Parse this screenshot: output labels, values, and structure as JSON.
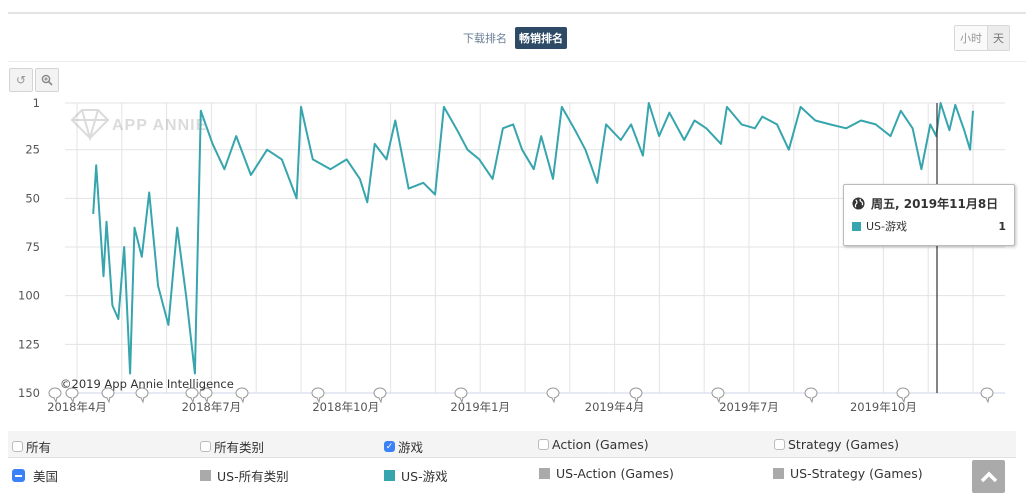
{
  "header": {
    "modes": [
      {
        "label": "下载排名",
        "active": false
      },
      {
        "label": "畅销排名",
        "active": true
      }
    ],
    "granularity": [
      {
        "label": "小时",
        "active": false
      },
      {
        "label": "天",
        "active": true
      }
    ]
  },
  "toolbar": {
    "reset_icon": "undo-icon",
    "zoom_icon": "zoom-in-icon"
  },
  "watermark": "APP ANNIE",
  "credits": "©2019 App Annie Intelligence",
  "tooltip": {
    "icon": "globe-icon",
    "title": "周五, 2019年11月8日",
    "series": "US-游戏",
    "value": "1",
    "color": "#37a5ad"
  },
  "legend": {
    "categories": [
      {
        "label": "所有",
        "checked": false
      },
      {
        "label": "所有类别",
        "checked": false
      },
      {
        "label": "游戏",
        "checked": true
      },
      {
        "label": "Action (Games)",
        "checked": false
      },
      {
        "label": "Strategy (Games)",
        "checked": false
      }
    ],
    "country": "美国",
    "series": [
      {
        "label": "US-所有类别",
        "color": "#aaaaaa"
      },
      {
        "label": "US-游戏",
        "color": "#37a5ad"
      },
      {
        "label": "US-Action (Games)",
        "color": "#aaaaaa"
      },
      {
        "label": "US-Strategy (Games)",
        "color": "#aaaaaa"
      }
    ]
  },
  "chart_data": {
    "type": "line",
    "title": "",
    "xlabel": "",
    "ylabel": "Rank",
    "y_reversed": true,
    "ylim": [
      1,
      150
    ],
    "yticks": [
      1,
      25,
      50,
      75,
      100,
      125,
      150
    ],
    "xticks": [
      "2018年4月",
      "2018年7月",
      "2018年10月",
      "2019年1月",
      "2019年4月",
      "2019年7月",
      "2019年10月"
    ],
    "grid": true,
    "legend_position": "bottom",
    "series": [
      {
        "name": "US-游戏",
        "color": "#37a5ad",
        "x_start": "2018-04-12",
        "x_end": "2019-11-30",
        "points_approx": [
          [
            "2018-04-12",
            58
          ],
          [
            "2018-04-14",
            33
          ],
          [
            "2018-04-19",
            90
          ],
          [
            "2018-04-21",
            62
          ],
          [
            "2018-04-25",
            105
          ],
          [
            "2018-04-29",
            112
          ],
          [
            "2018-05-03",
            75
          ],
          [
            "2018-05-07",
            140
          ],
          [
            "2018-05-10",
            65
          ],
          [
            "2018-05-15",
            80
          ],
          [
            "2018-05-20",
            47
          ],
          [
            "2018-05-26",
            95
          ],
          [
            "2018-06-02",
            115
          ],
          [
            "2018-06-08",
            65
          ],
          [
            "2018-06-14",
            100
          ],
          [
            "2018-06-20",
            140
          ],
          [
            "2018-06-24",
            5
          ],
          [
            "2018-07-02",
            22
          ],
          [
            "2018-07-10",
            35
          ],
          [
            "2018-07-18",
            18
          ],
          [
            "2018-07-28",
            38
          ],
          [
            "2018-08-08",
            25
          ],
          [
            "2018-08-18",
            30
          ],
          [
            "2018-08-28",
            50
          ],
          [
            "2018-08-31",
            3
          ],
          [
            "2018-09-08",
            30
          ],
          [
            "2018-09-20",
            35
          ],
          [
            "2018-10-01",
            30
          ],
          [
            "2018-10-10",
            40
          ],
          [
            "2018-10-15",
            52
          ],
          [
            "2018-10-20",
            22
          ],
          [
            "2018-10-28",
            30
          ],
          [
            "2018-11-03",
            10
          ],
          [
            "2018-11-12",
            45
          ],
          [
            "2018-11-22",
            42
          ],
          [
            "2018-11-30",
            48
          ],
          [
            "2018-12-06",
            3
          ],
          [
            "2018-12-15",
            15
          ],
          [
            "2018-12-22",
            25
          ],
          [
            "2018-12-30",
            30
          ],
          [
            "2019-01-08",
            40
          ],
          [
            "2019-01-15",
            14
          ],
          [
            "2019-01-22",
            12
          ],
          [
            "2019-01-28",
            25
          ],
          [
            "2019-02-05",
            35
          ],
          [
            "2019-02-10",
            18
          ],
          [
            "2019-02-18",
            40
          ],
          [
            "2019-02-24",
            3
          ],
          [
            "2019-03-05",
            15
          ],
          [
            "2019-03-12",
            25
          ],
          [
            "2019-03-20",
            42
          ],
          [
            "2019-03-26",
            12
          ],
          [
            "2019-04-05",
            20
          ],
          [
            "2019-04-12",
            12
          ],
          [
            "2019-04-20",
            28
          ],
          [
            "2019-04-24",
            1
          ],
          [
            "2019-05-01",
            18
          ],
          [
            "2019-05-08",
            6
          ],
          [
            "2019-05-18",
            20
          ],
          [
            "2019-05-25",
            10
          ],
          [
            "2019-06-02",
            14
          ],
          [
            "2019-06-12",
            22
          ],
          [
            "2019-06-16",
            3
          ],
          [
            "2019-06-26",
            12
          ],
          [
            "2019-07-05",
            14
          ],
          [
            "2019-07-10",
            8
          ],
          [
            "2019-07-20",
            12
          ],
          [
            "2019-07-28",
            25
          ],
          [
            "2019-08-05",
            3
          ],
          [
            "2019-08-15",
            10
          ],
          [
            "2019-08-25",
            12
          ],
          [
            "2019-09-05",
            14
          ],
          [
            "2019-09-15",
            10
          ],
          [
            "2019-09-25",
            12
          ],
          [
            "2019-10-05",
            18
          ],
          [
            "2019-10-12",
            5
          ],
          [
            "2019-10-20",
            14
          ],
          [
            "2019-10-26",
            35
          ],
          [
            "2019-11-01",
            12
          ],
          [
            "2019-11-05",
            18
          ],
          [
            "2019-11-08",
            1
          ],
          [
            "2019-11-14",
            15
          ],
          [
            "2019-11-18",
            2
          ],
          [
            "2019-11-24",
            15
          ],
          [
            "2019-11-28",
            25
          ],
          [
            "2019-11-30",
            5
          ]
        ]
      }
    ],
    "highlighted_point": {
      "date": "2019-11-08",
      "value": 1
    }
  }
}
